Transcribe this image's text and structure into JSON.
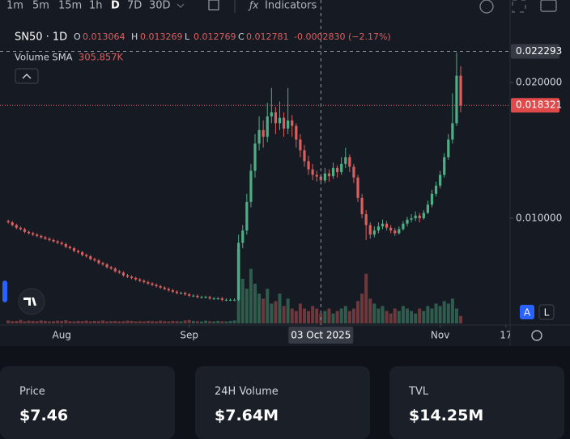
{
  "toolbar": {
    "intervals": [
      "1m",
      "5m",
      "15m",
      "1h",
      "D",
      "7D",
      "30D"
    ],
    "indicators": "Indicators"
  },
  "chart_data": {
    "type": "candlestick",
    "symbol": "SN50 · 1D",
    "ohlc_keys": [
      "O",
      "H",
      "L",
      "C"
    ],
    "change": "-0.0002830 (−2.17%)",
    "volume_label": "Volume SMA",
    "volume_sma": "305.857K",
    "up_color": "#4fae86",
    "down_color": "#d9605f",
    "candles": [
      [
        0.0098,
        0.0099,
        0.0096,
        0.0097
      ],
      [
        0.0097,
        0.0098,
        0.0094,
        0.0095
      ],
      [
        0.0095,
        0.0096,
        0.0092,
        0.0093
      ],
      [
        0.0093,
        0.0094,
        0.0091,
        0.0092
      ],
      [
        0.0092,
        0.0093,
        0.0089,
        0.009
      ],
      [
        0.009,
        0.0091,
        0.0088,
        0.0089
      ],
      [
        0.0089,
        0.009,
        0.0087,
        0.0088
      ],
      [
        0.0088,
        0.0089,
        0.0086,
        0.0087
      ],
      [
        0.0087,
        0.0088,
        0.0085,
        0.0086
      ],
      [
        0.0086,
        0.0087,
        0.0084,
        0.0085
      ],
      [
        0.0085,
        0.0086,
        0.0083,
        0.0084
      ],
      [
        0.0084,
        0.0085,
        0.0082,
        0.0083
      ],
      [
        0.0083,
        0.0084,
        0.0081,
        0.0082
      ],
      [
        0.0082,
        0.0083,
        0.008,
        0.0081
      ],
      [
        0.0081,
        0.0082,
        0.0078,
        0.0079
      ],
      [
        0.0079,
        0.008,
        0.0077,
        0.0078
      ],
      [
        0.0078,
        0.0079,
        0.0075,
        0.0076
      ],
      [
        0.0076,
        0.0077,
        0.0074,
        0.0075
      ],
      [
        0.0075,
        0.0076,
        0.0072,
        0.0073
      ],
      [
        0.0073,
        0.0074,
        0.0071,
        0.0072
      ],
      [
        0.0072,
        0.0073,
        0.0069,
        0.007
      ],
      [
        0.007,
        0.0071,
        0.0068,
        0.0069
      ],
      [
        0.0069,
        0.007,
        0.0066,
        0.0067
      ],
      [
        0.0067,
        0.0068,
        0.0065,
        0.0066
      ],
      [
        0.0066,
        0.0067,
        0.0063,
        0.0064
      ],
      [
        0.0064,
        0.0065,
        0.0062,
        0.0063
      ],
      [
        0.0063,
        0.0064,
        0.006,
        0.0061
      ],
      [
        0.0061,
        0.0062,
        0.0059,
        0.006
      ],
      [
        0.006,
        0.0061,
        0.0057,
        0.0058
      ],
      [
        0.0058,
        0.0059,
        0.0056,
        0.0057
      ],
      [
        0.0057,
        0.0058,
        0.0055,
        0.0056
      ],
      [
        0.0056,
        0.0057,
        0.0054,
        0.0055
      ],
      [
        0.0055,
        0.0056,
        0.0053,
        0.0054
      ],
      [
        0.0054,
        0.0055,
        0.0052,
        0.0053
      ],
      [
        0.0053,
        0.0054,
        0.0051,
        0.0052
      ],
      [
        0.0052,
        0.0053,
        0.005,
        0.0051
      ],
      [
        0.0051,
        0.0052,
        0.0049,
        0.005
      ],
      [
        0.005,
        0.0051,
        0.0048,
        0.0049
      ],
      [
        0.0049,
        0.005,
        0.0047,
        0.0048
      ],
      [
        0.0048,
        0.0049,
        0.0046,
        0.0047
      ],
      [
        0.0047,
        0.0048,
        0.0045,
        0.0046
      ],
      [
        0.0046,
        0.0047,
        0.0044,
        0.0045
      ],
      [
        0.0045,
        0.0046,
        0.0044,
        0.0045
      ],
      [
        0.0045,
        0.0046,
        0.0043,
        0.0044
      ],
      [
        0.0044,
        0.0045,
        0.0042,
        0.0043
      ],
      [
        0.0043,
        0.0044,
        0.0042,
        0.0043
      ],
      [
        0.0043,
        0.0044,
        0.0041,
        0.0042
      ],
      [
        0.0042,
        0.0043,
        0.0041,
        0.0042
      ],
      [
        0.0042,
        0.0043,
        0.0041,
        0.0042
      ],
      [
        0.0042,
        0.0043,
        0.004,
        0.0041
      ],
      [
        0.0041,
        0.0042,
        0.004,
        0.0041
      ],
      [
        0.0041,
        0.0042,
        0.004,
        0.0041
      ],
      [
        0.0041,
        0.0042,
        0.0039,
        0.004
      ],
      [
        0.004,
        0.0041,
        0.0039,
        0.004
      ],
      [
        0.004,
        0.0041,
        0.0039,
        0.004
      ],
      [
        0.004,
        0.0041,
        0.0039,
        0.004
      ],
      [
        0.004,
        0.0088,
        0.0039,
        0.0082
      ],
      [
        0.0082,
        0.0095,
        0.0078,
        0.0091
      ],
      [
        0.0091,
        0.0118,
        0.0088,
        0.0112
      ],
      [
        0.0112,
        0.014,
        0.0108,
        0.0135
      ],
      [
        0.0135,
        0.0162,
        0.013,
        0.0155
      ],
      [
        0.0155,
        0.0175,
        0.015,
        0.0165
      ],
      [
        0.0165,
        0.0172,
        0.0152,
        0.016
      ],
      [
        0.016,
        0.0185,
        0.0156,
        0.0175
      ],
      [
        0.0175,
        0.0196,
        0.017,
        0.0178
      ],
      [
        0.0178,
        0.0182,
        0.0162,
        0.017
      ],
      [
        0.017,
        0.0186,
        0.0165,
        0.0174
      ],
      [
        0.0174,
        0.0178,
        0.016,
        0.0166
      ],
      [
        0.0166,
        0.0196,
        0.0162,
        0.0172
      ],
      [
        0.0172,
        0.0176,
        0.016,
        0.0168
      ],
      [
        0.0168,
        0.017,
        0.0152,
        0.0158
      ],
      [
        0.0158,
        0.0162,
        0.0145,
        0.015
      ],
      [
        0.015,
        0.0154,
        0.0138,
        0.0142
      ],
      [
        0.0142,
        0.0146,
        0.0132,
        0.0136
      ],
      [
        0.0136,
        0.014,
        0.0128,
        0.0132
      ],
      [
        0.0132,
        0.0135,
        0.0127,
        0.013064
      ],
      [
        0.013064,
        0.013269,
        0.012769,
        0.012781
      ],
      [
        0.012781,
        0.0137,
        0.0126,
        0.0133
      ],
      [
        0.0133,
        0.0136,
        0.0127,
        0.0131
      ],
      [
        0.0131,
        0.0141,
        0.0129,
        0.0137
      ],
      [
        0.0137,
        0.0139,
        0.013,
        0.0134
      ],
      [
        0.0134,
        0.0145,
        0.0132,
        0.014
      ],
      [
        0.014,
        0.0152,
        0.0137,
        0.0145
      ],
      [
        0.0145,
        0.0147,
        0.0134,
        0.0138
      ],
      [
        0.0138,
        0.014,
        0.0126,
        0.013
      ],
      [
        0.013,
        0.0132,
        0.0112,
        0.0115
      ],
      [
        0.0115,
        0.0118,
        0.01,
        0.0103
      ],
      [
        0.0103,
        0.0106,
        0.0084,
        0.0095
      ],
      [
        0.0095,
        0.0097,
        0.0085,
        0.0088
      ],
      [
        0.0088,
        0.0094,
        0.0086,
        0.0091
      ],
      [
        0.0091,
        0.0097,
        0.0089,
        0.0094
      ],
      [
        0.0094,
        0.0099,
        0.0092,
        0.0096
      ],
      [
        0.0096,
        0.0098,
        0.0091,
        0.0093
      ],
      [
        0.0093,
        0.0095,
        0.0089,
        0.0091
      ],
      [
        0.0091,
        0.0093,
        0.0087,
        0.0089
      ],
      [
        0.0089,
        0.0094,
        0.0088,
        0.0092
      ],
      [
        0.0092,
        0.0098,
        0.0091,
        0.0096
      ],
      [
        0.0096,
        0.0101,
        0.0094,
        0.0099
      ],
      [
        0.0099,
        0.0103,
        0.0097,
        0.01
      ],
      [
        0.01,
        0.0105,
        0.0098,
        0.0102
      ],
      [
        0.0102,
        0.0104,
        0.0097,
        0.01
      ],
      [
        0.01,
        0.0106,
        0.0099,
        0.0104
      ],
      [
        0.0104,
        0.0113,
        0.0103,
        0.011
      ],
      [
        0.011,
        0.0121,
        0.0108,
        0.0118
      ],
      [
        0.0118,
        0.0127,
        0.0116,
        0.0124
      ],
      [
        0.0124,
        0.0135,
        0.0122,
        0.0132
      ],
      [
        0.0132,
        0.0148,
        0.013,
        0.0145
      ],
      [
        0.0145,
        0.0162,
        0.0143,
        0.0158
      ],
      [
        0.0158,
        0.0192,
        0.0155,
        0.017
      ],
      [
        0.017,
        0.0222,
        0.0168,
        0.0205
      ],
      [
        0.0205,
        0.0212,
        0.0178,
        0.018321
      ]
    ],
    "volume": [
      60000,
      45000,
      50000,
      70000,
      40000,
      55000,
      50000,
      45000,
      60000,
      50000,
      40000,
      45000,
      55000,
      50000,
      65000,
      45000,
      40000,
      50000,
      45000,
      55000,
      40000,
      50000,
      45000,
      60000,
      40000,
      45000,
      50000,
      40000,
      45000,
      55000,
      50000,
      40000,
      45000,
      40000,
      50000,
      45000,
      40000,
      55000,
      45000,
      40000,
      50000,
      45000,
      40000,
      60000,
      70000,
      50000,
      45000,
      40000,
      55000,
      45000,
      40000,
      50000,
      45000,
      40000,
      50000,
      60000,
      1500000,
      900000,
      700000,
      1100000,
      800000,
      600000,
      500000,
      700000,
      400000,
      450000,
      600000,
      350000,
      500000,
      300000,
      250000,
      400000,
      300000,
      250000,
      350000,
      300000,
      200000,
      250000,
      300000,
      200000,
      250000,
      300000,
      350000,
      250000,
      300000,
      450000,
      600000,
      1000000,
      500000,
      400000,
      300000,
      350000,
      250000,
      200000,
      300000,
      250000,
      350000,
      300000,
      250000,
      200000,
      300000,
      250000,
      350000,
      300000,
      400000,
      350000,
      450000,
      400000,
      500000,
      300000,
      150000
    ],
    "xlim": [
      -2,
      122
    ],
    "xticks": [
      {
        "value": 13,
        "label": "Aug"
      },
      {
        "value": 44,
        "label": "Sep"
      },
      {
        "value": 105,
        "label": "Nov"
      },
      {
        "value": 121,
        "label": "17"
      }
    ],
    "ylim": [
      0.002262,
      0.026071
    ],
    "yticks": [
      {
        "value": 0.01,
        "label": "0.010000"
      },
      {
        "value": 0.02,
        "label": "0.020000"
      }
    ],
    "crosshair": {
      "index": 76,
      "price": 0.022293,
      "date": "03 Oct 2025"
    },
    "scale_buttons": [
      "A",
      "L"
    ]
  },
  "stats": [
    {
      "label": "Price",
      "value": "$7.46"
    },
    {
      "label": "24H Volume",
      "value": "$7.64M"
    },
    {
      "label": "TVL",
      "value": "$14.25M"
    }
  ]
}
